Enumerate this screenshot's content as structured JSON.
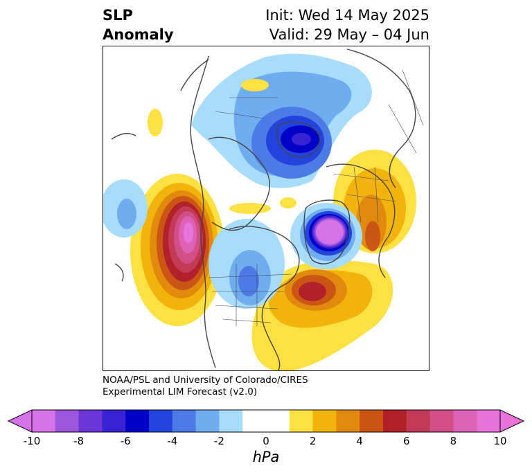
{
  "header": {
    "title_line1": "SLP",
    "title_line2": "Anomaly",
    "init_label": "Init: Wed 14 May 2025",
    "valid_label": "Valid: 29 May – 04 Jun"
  },
  "credit": {
    "line1": "NOAA/PSL and University of Colorado/CIRES",
    "line2": "Experimental LIM Forecast (v2.0)"
  },
  "colorbar": {
    "units": "hPa",
    "ticks": [
      "-10",
      "-8",
      "-6",
      "-4",
      "-2",
      "0",
      "2",
      "4",
      "6",
      "8",
      "10"
    ],
    "colors": [
      "#d673e8",
      "#9c55de",
      "#6c35d8",
      "#3822d4",
      "#0000c8",
      "#2244dd",
      "#4c7be6",
      "#70acf0",
      "#a8dcfc",
      "#ffffff",
      "#ffffff",
      "#fde042",
      "#f2b40c",
      "#e18a0e",
      "#ca5514",
      "#b2202a",
      "#c23a56",
      "#d24f86",
      "#dd62b6",
      "#e874da"
    ],
    "under_color": "#d673e8",
    "over_color": "#e874da"
  },
  "map": {
    "projection": "north-polar stereographic",
    "field": "sea level pressure anomaly",
    "coastline_color": "#444444"
  }
}
